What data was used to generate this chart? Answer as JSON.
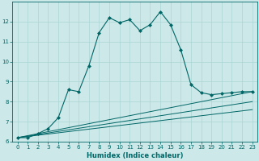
{
  "xlabel": "Humidex (Indice chaleur)",
  "bg_color": "#cce8e8",
  "grid_color": "#aad4d4",
  "line_color": "#006666",
  "spine_color": "#006666",
  "tick_color": "#006666",
  "xlabel_color": "#006666",
  "xlim": [
    -0.5,
    23.5
  ],
  "ylim": [
    6,
    13
  ],
  "yticks": [
    6,
    7,
    8,
    9,
    10,
    11,
    12
  ],
  "xticks": [
    0,
    1,
    2,
    3,
    4,
    5,
    6,
    7,
    8,
    9,
    10,
    11,
    12,
    13,
    14,
    15,
    16,
    17,
    18,
    19,
    20,
    21,
    22,
    23
  ],
  "tick_fontsize": 5.0,
  "xlabel_fontsize": 6.0,
  "series": [
    {
      "x": [
        0,
        1,
        2,
        3,
        4,
        5,
        6,
        7,
        8,
        9,
        10,
        11,
        12,
        13,
        14,
        15,
        16,
        17,
        18,
        19,
        20,
        21,
        22,
        23
      ],
      "y": [
        6.2,
        6.2,
        6.4,
        6.65,
        7.2,
        8.6,
        8.5,
        9.8,
        11.45,
        12.2,
        11.95,
        12.1,
        11.55,
        11.85,
        12.5,
        11.85,
        10.6,
        8.85,
        8.45,
        8.35,
        8.4,
        8.45,
        8.5,
        8.5
      ],
      "marker": "D",
      "markersize": 2.0,
      "linewidth": 0.8,
      "has_marker": true
    },
    {
      "x": [
        0,
        23
      ],
      "y": [
        6.2,
        8.5
      ],
      "marker": null,
      "markersize": 0,
      "linewidth": 0.7,
      "has_marker": false
    },
    {
      "x": [
        0,
        23
      ],
      "y": [
        6.2,
        8.0
      ],
      "marker": null,
      "markersize": 0,
      "linewidth": 0.7,
      "has_marker": false
    },
    {
      "x": [
        0,
        23
      ],
      "y": [
        6.2,
        7.6
      ],
      "marker": null,
      "markersize": 0,
      "linewidth": 0.7,
      "has_marker": false
    }
  ]
}
